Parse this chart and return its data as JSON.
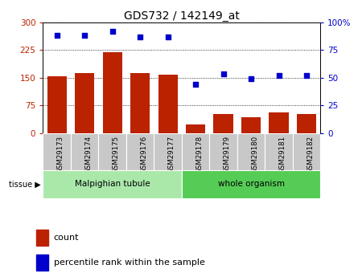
{
  "title": "GDS732 / 142149_at",
  "samples": [
    "GSM29173",
    "GSM29174",
    "GSM29175",
    "GSM29176",
    "GSM29177",
    "GSM29178",
    "GSM29179",
    "GSM29180",
    "GSM29181",
    "GSM29182"
  ],
  "counts": [
    153,
    163,
    218,
    163,
    157,
    22,
    52,
    42,
    55,
    52
  ],
  "percentiles": [
    88,
    88,
    92,
    87,
    87,
    44,
    53,
    49,
    52,
    52
  ],
  "tissue_groups": [
    {
      "label": "Malpighian tubule",
      "start": 0,
      "end": 5,
      "color": "#aae8aa"
    },
    {
      "label": "whole organism",
      "start": 5,
      "end": 10,
      "color": "#55cc55"
    }
  ],
  "ylim_left": [
    0,
    300
  ],
  "ylim_right": [
    0,
    100
  ],
  "yticks_left": [
    0,
    75,
    150,
    225,
    300
  ],
  "yticks_right": [
    0,
    25,
    50,
    75,
    100
  ],
  "ytick_labels_left": [
    "0",
    "75",
    "150",
    "225",
    "300"
  ],
  "ytick_labels_right": [
    "0",
    "25",
    "50",
    "75",
    "100%"
  ],
  "bar_color": "#bb2200",
  "dot_color": "#0000cc",
  "grid_color": "#000000",
  "legend_count": "count",
  "legend_percentile": "percentile rank within the sample",
  "bg_tickbox": "#c8c8c8",
  "plot_bg": "#ffffff"
}
